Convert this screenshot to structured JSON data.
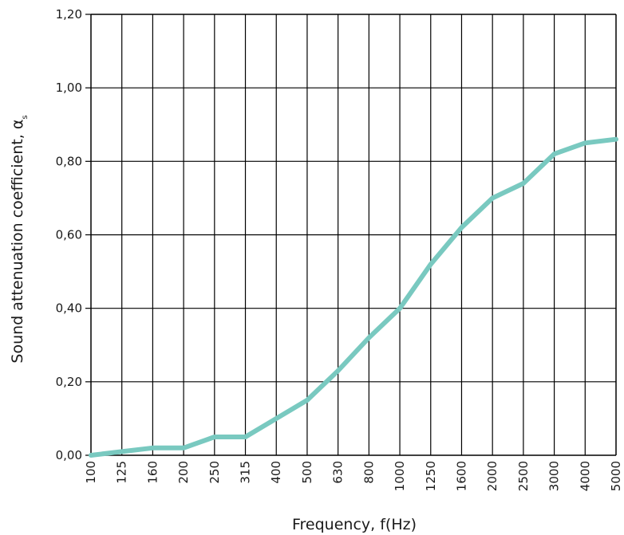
{
  "chart_data": {
    "type": "line",
    "title": "",
    "xlabel": "Frequency, f(Hz)",
    "ylabel": "Sound attenuation coefficient, α",
    "ylabel_subscript": "s",
    "categories": [
      "100",
      "125",
      "160",
      "200",
      "250",
      "315",
      "400",
      "500",
      "630",
      "800",
      "1000",
      "1250",
      "1600",
      "2000",
      "2500",
      "3000",
      "4000",
      "5000"
    ],
    "y_tick_labels": [
      "0,00",
      "0,20",
      "0,40",
      "0,60",
      "0,80",
      "1,00",
      "1,20"
    ],
    "y_ticks": [
      0,
      0.2,
      0.4,
      0.6,
      0.8,
      1.0,
      1.2
    ],
    "ylim": [
      0,
      1.2
    ],
    "grid": true,
    "series": [
      {
        "values": [
          0.0,
          0.01,
          0.02,
          0.02,
          0.05,
          0.05,
          0.1,
          0.15,
          0.23,
          0.32,
          0.4,
          0.52,
          0.62,
          0.7,
          0.74,
          0.82,
          0.85,
          0.86
        ],
        "color": "#79c9c0"
      }
    ]
  }
}
